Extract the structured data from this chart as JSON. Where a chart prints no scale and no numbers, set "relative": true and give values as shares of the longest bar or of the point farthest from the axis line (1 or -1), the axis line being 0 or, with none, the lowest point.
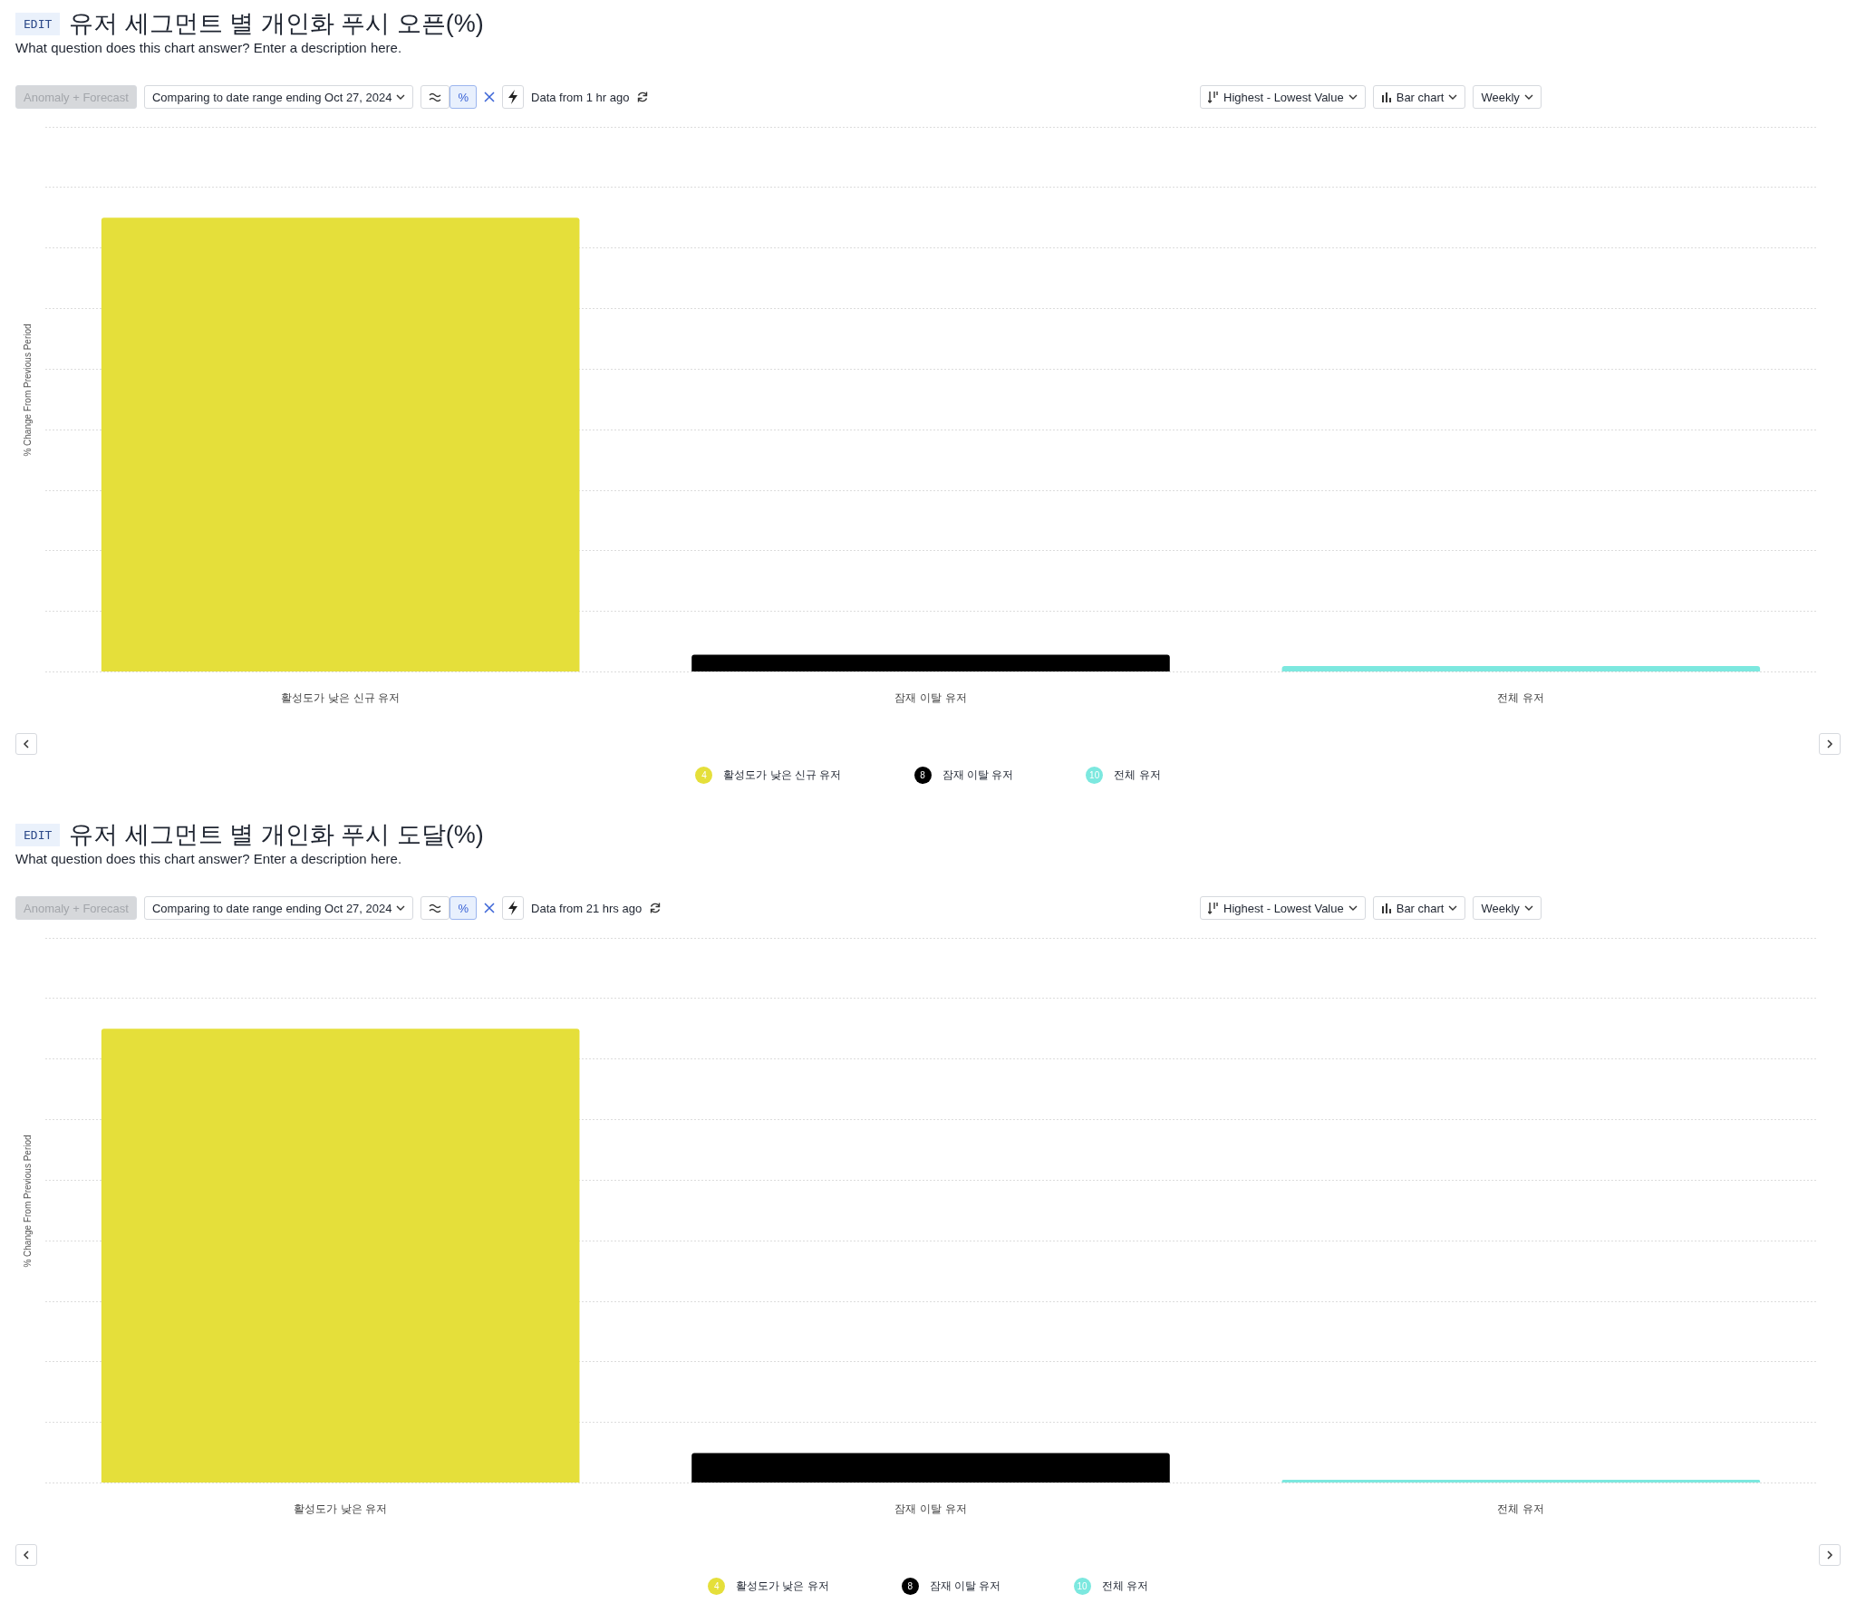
{
  "chart_data": [
    {
      "type": "bar",
      "title": "유저 세그먼트 별 개인화 푸시 오픈(%)",
      "subtitle": "What question does this chart answer? Enter a description here.",
      "ylabel": "% Change From Previous Period",
      "categories": [
        "활성도가 낮은 신규 유저",
        "잠재 이탈 유저",
        "전체 유저"
      ],
      "relative": true,
      "grid": "y",
      "legend": "bottom",
      "series": [
        {
          "name": "활성도가 낮은 신규 유저",
          "color": "#e5df3a",
          "values": [
            1,
            null,
            null
          ]
        },
        {
          "name": "잠재 이탈 유저",
          "color": "#000000",
          "values": [
            null,
            0.038,
            null
          ]
        },
        {
          "name": "전체 유저",
          "color": "#7ce8df",
          "values": [
            null,
            null,
            0.013
          ]
        }
      ],
      "annotations": [
        "EDIT",
        "Anomaly + Forecast",
        "Comparing to date range ending Oct 27, 2024",
        "%",
        "Data from 1 hr ago",
        "Highest - Lowest Value",
        "Bar chart",
        "Weekly",
        "4",
        "8",
        "10"
      ]
    },
    {
      "type": "bar",
      "title": "유저 세그먼트 별 개인화 푸시 도달(%)",
      "subtitle": "What question does this chart answer? Enter a description here.",
      "ylabel": "% Change From Previous Period",
      "categories": [
        "활성도가 낮은 유저",
        "잠재 이탈 유저",
        "전체 유저"
      ],
      "relative": true,
      "grid": "y",
      "legend": "bottom",
      "series": [
        {
          "name": "활성도가 낮은 유저",
          "color": "#e5df3a",
          "values": [
            1,
            null,
            null
          ]
        },
        {
          "name": "잠재 이탈 유저",
          "color": "#000000",
          "values": [
            null,
            0.066,
            null
          ]
        },
        {
          "name": "전체 유저",
          "color": "#7ce8df",
          "values": [
            null,
            null,
            0.007
          ]
        }
      ],
      "annotations": [
        "EDIT",
        "Anomaly + Forecast",
        "Comparing to date range ending Oct 27, 2024",
        "%",
        "Data from 21 hrs ago",
        "Highest - Lowest Value",
        "Bar chart",
        "Weekly",
        "4",
        "8",
        "10"
      ]
    }
  ]
}
